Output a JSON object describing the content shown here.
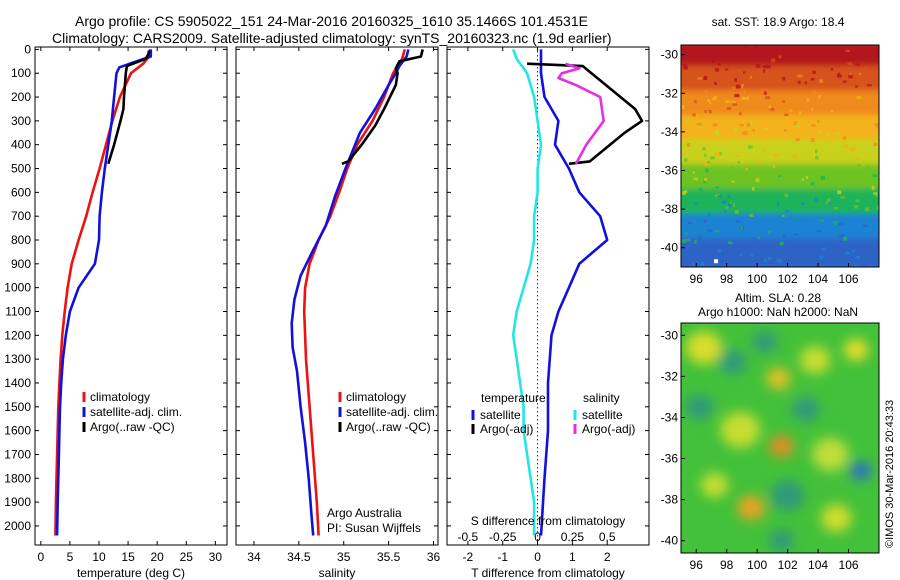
{
  "header": {
    "line1": "Argo profile: CS 5905022_151 24-Mar-2016 20160325_1610 35.1466S 101.4531E",
    "line2": "Climatology: CARS2009. Satellite-adjusted climatology: synTS_20160323.nc (1.9d earlier)"
  },
  "footer": {
    "credit_line1": "Argo Australia",
    "credit_line2": "PI: Susan Wijffels",
    "stamp": "©IMOS 30-Mar-2016 20:43:33"
  },
  "colors": {
    "climatology": "#ee1111",
    "satellite": "#1111dd",
    "argo": "#000000",
    "satellite_s": "#22e6e6",
    "argo_s": "#e62ee6",
    "map_point": "#ffffff"
  },
  "chart_data": [
    {
      "type": "line",
      "panel": "temperature",
      "xlabel": "temperature (deg C)",
      "ylabel": "",
      "xlim": [
        -1,
        32
      ],
      "ylim": [
        2080,
        -10
      ],
      "xticks": [
        0,
        5,
        10,
        15,
        20,
        25,
        30
      ],
      "yticks": [
        0,
        100,
        200,
        300,
        400,
        500,
        600,
        700,
        800,
        900,
        1000,
        1100,
        1200,
        1300,
        1400,
        1500,
        1600,
        1700,
        1800,
        1900,
        2000
      ],
      "legend": {
        "position": "bottom-right",
        "entries": [
          "climatology",
          "satellite-adj. clim.",
          "Argo(..raw -QC)"
        ]
      },
      "series": [
        {
          "name": "climatology",
          "color_key": "climatology",
          "points": [
            [
              18.8,
              0
            ],
            [
              18.6,
              30
            ],
            [
              17.6,
              60
            ],
            [
              15.5,
              100
            ],
            [
              13.6,
              200
            ],
            [
              12.3,
              300
            ],
            [
              11.2,
              400
            ],
            [
              10.1,
              500
            ],
            [
              8.9,
              600
            ],
            [
              7.8,
              700
            ],
            [
              6.5,
              800
            ],
            [
              5.3,
              900
            ],
            [
              4.6,
              1000
            ],
            [
              4.1,
              1100
            ],
            [
              3.7,
              1200
            ],
            [
              3.4,
              1300
            ],
            [
              3.2,
              1400
            ],
            [
              3.0,
              1500
            ],
            [
              2.9,
              1600
            ],
            [
              2.8,
              1700
            ],
            [
              2.7,
              1800
            ],
            [
              2.6,
              1900
            ],
            [
              2.5,
              2040
            ]
          ]
        },
        {
          "name": "satellite-adj. clim.",
          "color_key": "satellite",
          "points": [
            [
              18.9,
              0
            ],
            [
              18.9,
              30
            ],
            [
              13.5,
              75
            ],
            [
              13.0,
              100
            ],
            [
              12.6,
              200
            ],
            [
              12.2,
              300
            ],
            [
              11.6,
              400
            ],
            [
              11.0,
              500
            ],
            [
              10.5,
              600
            ],
            [
              10.1,
              700
            ],
            [
              10.0,
              800
            ],
            [
              9.3,
              900
            ],
            [
              6.5,
              1000
            ],
            [
              5.0,
              1100
            ],
            [
              4.3,
              1200
            ],
            [
              3.8,
              1300
            ],
            [
              3.5,
              1400
            ],
            [
              3.3,
              1500
            ],
            [
              3.2,
              1600
            ],
            [
              3.1,
              1700
            ],
            [
              3.0,
              1800
            ],
            [
              2.9,
              1900
            ],
            [
              2.8,
              2040
            ]
          ]
        },
        {
          "name": "Argo(..raw -QC)",
          "color_key": "argo",
          "points": [
            [
              18.6,
              5
            ],
            [
              18.5,
              20
            ],
            [
              18.0,
              40
            ],
            [
              14.8,
              70
            ],
            [
              14.6,
              100
            ],
            [
              14.3,
              200
            ],
            [
              14.2,
              250
            ],
            [
              13.7,
              300
            ],
            [
              12.6,
              400
            ],
            [
              11.6,
              480
            ]
          ]
        }
      ]
    },
    {
      "type": "line",
      "panel": "salinity",
      "xlabel": "salinity",
      "ylabel": "",
      "xlim": [
        33.8,
        36.05
      ],
      "ylim": [
        2080,
        -10
      ],
      "xticks": [
        34,
        34.5,
        35,
        35.5,
        36
      ],
      "legend": {
        "position": "bottom-right",
        "entries": [
          "climatology",
          "satellite-adj. clim.",
          "Argo(..raw -QC)"
        ]
      },
      "series": [
        {
          "name": "climatology",
          "color_key": "climatology",
          "points": [
            [
              35.68,
              0
            ],
            [
              35.65,
              40
            ],
            [
              35.55,
              100
            ],
            [
              35.45,
              200
            ],
            [
              35.32,
              300
            ],
            [
              35.15,
              400
            ],
            [
              35.04,
              500
            ],
            [
              34.95,
              600
            ],
            [
              34.85,
              700
            ],
            [
              34.72,
              800
            ],
            [
              34.62,
              900
            ],
            [
              34.57,
              1000
            ],
            [
              34.56,
              1100
            ],
            [
              34.57,
              1200
            ],
            [
              34.58,
              1300
            ],
            [
              34.6,
              1400
            ],
            [
              34.62,
              1500
            ],
            [
              34.64,
              1600
            ],
            [
              34.66,
              1700
            ],
            [
              34.68,
              1800
            ],
            [
              34.7,
              1900
            ],
            [
              34.72,
              2040
            ]
          ]
        },
        {
          "name": "satellite-adj. clim.",
          "color_key": "satellite",
          "points": [
            [
              35.72,
              0
            ],
            [
              35.7,
              30
            ],
            [
              35.62,
              70
            ],
            [
              35.58,
              100
            ],
            [
              35.5,
              150
            ],
            [
              35.35,
              250
            ],
            [
              35.18,
              350
            ],
            [
              35.02,
              500
            ],
            [
              34.9,
              620
            ],
            [
              34.8,
              740
            ],
            [
              34.65,
              850
            ],
            [
              34.52,
              950
            ],
            [
              34.45,
              1050
            ],
            [
              34.42,
              1150
            ],
            [
              34.43,
              1250
            ],
            [
              34.48,
              1350
            ],
            [
              34.52,
              1500
            ],
            [
              34.57,
              1650
            ],
            [
              34.61,
              1800
            ],
            [
              34.64,
              1950
            ],
            [
              34.66,
              2040
            ]
          ]
        },
        {
          "name": "Argo(..raw -QC)",
          "color_key": "argo",
          "points": [
            [
              35.88,
              0
            ],
            [
              35.86,
              30
            ],
            [
              35.62,
              50
            ],
            [
              35.58,
              80
            ],
            [
              35.6,
              100
            ],
            [
              35.58,
              150
            ],
            [
              35.45,
              250
            ],
            [
              35.35,
              320
            ],
            [
              35.2,
              400
            ],
            [
              35.05,
              470
            ],
            [
              34.98,
              480
            ]
          ]
        }
      ]
    },
    {
      "type": "line",
      "panel": "difference",
      "xlabel": "T difference from climatology",
      "xlabel_top": "S difference from climatology",
      "ylabel": "",
      "xlim": [
        -2.6,
        3.2
      ],
      "ylim": [
        2080,
        -10
      ],
      "xticks": [
        -2,
        -1,
        0,
        1,
        2
      ],
      "xticks_s": [
        -0.5,
        -0.25,
        0,
        0.25,
        0.5
      ],
      "zero_line": true,
      "legend": {
        "position": "bottom",
        "headers": [
          "temperature",
          "salinity"
        ],
        "entries": [
          "satellite",
          "Argo(-adj)",
          "satellite",
          "Argo(-adj)"
        ]
      },
      "series": [
        {
          "name": "satellite",
          "group": "temperature",
          "color_key": "satellite",
          "points": [
            [
              0.1,
              0
            ],
            [
              0.1,
              100
            ],
            [
              0.2,
              200
            ],
            [
              0.6,
              300
            ],
            [
              0.5,
              400
            ],
            [
              0.9,
              500
            ],
            [
              1.2,
              600
            ],
            [
              1.8,
              700
            ],
            [
              2.0,
              800
            ],
            [
              1.2,
              900
            ],
            [
              0.9,
              1000
            ],
            [
              0.6,
              1100
            ],
            [
              0.4,
              1200
            ],
            [
              0.3,
              1400
            ],
            [
              0.3,
              1600
            ],
            [
              0.2,
              1800
            ],
            [
              0.1,
              2040
            ]
          ]
        },
        {
          "name": "Argo(-adj)",
          "group": "temperature",
          "color_key": "argo",
          "points": [
            [
              -0.3,
              60
            ],
            [
              1.3,
              70
            ],
            [
              2.8,
              250
            ],
            [
              3.0,
              300
            ],
            [
              2.5,
              350
            ],
            [
              1.5,
              470
            ],
            [
              0.9,
              480
            ]
          ]
        },
        {
          "name": "satellite",
          "group": "salinity",
          "color_key": "satellite_s",
          "points": [
            [
              -0.7,
              0
            ],
            [
              -0.6,
              40
            ],
            [
              -0.3,
              100
            ],
            [
              -0.1,
              200
            ],
            [
              0.0,
              300
            ],
            [
              0.1,
              400
            ],
            [
              0.0,
              500
            ],
            [
              0.0,
              600
            ],
            [
              -0.1,
              700
            ],
            [
              -0.1,
              800
            ],
            [
              -0.2,
              900
            ],
            [
              -0.4,
              1000
            ],
            [
              -0.6,
              1100
            ],
            [
              -0.7,
              1200
            ],
            [
              -0.6,
              1300
            ],
            [
              -0.5,
              1400
            ],
            [
              -0.4,
              1500
            ],
            [
              -0.4,
              1600
            ],
            [
              -0.3,
              1700
            ],
            [
              -0.2,
              1800
            ],
            [
              -0.1,
              1900
            ],
            [
              -0.1,
              2040
            ]
          ]
        },
        {
          "name": "Argo(-adj)",
          "group": "salinity",
          "color_key": "argo_s",
          "points": [
            [
              0.8,
              60
            ],
            [
              1.2,
              80
            ],
            [
              0.7,
              100
            ],
            [
              0.6,
              120
            ],
            [
              1.1,
              150
            ],
            [
              1.8,
              200
            ],
            [
              1.9,
              300
            ],
            [
              1.4,
              400
            ],
            [
              1.1,
              480
            ]
          ]
        }
      ]
    },
    {
      "type": "heatmap",
      "panel": "sst-map",
      "title": "sat. SST: 18.9  Argo: 18.4",
      "xlim": [
        95,
        108
      ],
      "ylim": [
        -41,
        -29.5
      ],
      "xticks": [
        96,
        98,
        100,
        102,
        104,
        106
      ],
      "yticks": [
        -30,
        -32,
        -34,
        -36,
        -38,
        -40
      ],
      "bands_top_to_bottom": [
        "#b3141e",
        "#d6521c",
        "#ef8a1e",
        "#f4b21c",
        "#c8d21e",
        "#6cc324",
        "#1fb35a",
        "#1c82d2",
        "#2e64c6"
      ],
      "point": [
        97.3,
        -40.7
      ]
    },
    {
      "type": "heatmap",
      "panel": "sla-map",
      "title_line1": "Altim. SLA: 0.28",
      "title_line2": "Argo h1000: NaN h2000: NaN",
      "xlim": [
        95,
        108
      ],
      "ylim": [
        -40.6,
        -29.4
      ],
      "xticks": [
        96,
        98,
        100,
        102,
        104,
        106
      ],
      "yticks": [
        -30,
        -32,
        -34,
        -36,
        -38,
        -40
      ],
      "base_color": "#43c13a",
      "blobs": [
        {
          "x": 96.5,
          "y": -30.6,
          "r": 1.2,
          "c": "#d8dd2a"
        },
        {
          "x": 98.4,
          "y": -31.3,
          "r": 0.9,
          "c": "#2f9a7c"
        },
        {
          "x": 100.5,
          "y": -30.3,
          "r": 0.8,
          "c": "#2f9a7c"
        },
        {
          "x": 101.4,
          "y": -32.1,
          "r": 0.8,
          "c": "#e2c128"
        },
        {
          "x": 103.8,
          "y": -31.2,
          "r": 1.0,
          "c": "#c9de30"
        },
        {
          "x": 106.5,
          "y": -30.7,
          "r": 0.8,
          "c": "#e9dd2a"
        },
        {
          "x": 96.2,
          "y": -33.5,
          "r": 0.9,
          "c": "#2f9a7c"
        },
        {
          "x": 98.9,
          "y": -34.6,
          "r": 1.3,
          "c": "#c8dd33"
        },
        {
          "x": 101.6,
          "y": -35.4,
          "r": 0.8,
          "c": "#e58c21"
        },
        {
          "x": 103.2,
          "y": -33.6,
          "r": 0.9,
          "c": "#2f9a7c"
        },
        {
          "x": 104.8,
          "y": -35.8,
          "r": 1.2,
          "c": "#c2dd3a"
        },
        {
          "x": 106.8,
          "y": -36.6,
          "r": 0.7,
          "c": "#2d6fc2"
        },
        {
          "x": 97.2,
          "y": -37.3,
          "r": 0.9,
          "c": "#c9de30"
        },
        {
          "x": 99.6,
          "y": -38.4,
          "r": 0.9,
          "c": "#eba321"
        },
        {
          "x": 102.0,
          "y": -37.8,
          "r": 1.1,
          "c": "#2f9a7c"
        },
        {
          "x": 105.2,
          "y": -38.9,
          "r": 1.0,
          "c": "#d2dd2e"
        },
        {
          "x": 101.6,
          "y": -40.0,
          "r": 0.8,
          "c": "#2f9a7c"
        }
      ]
    }
  ]
}
